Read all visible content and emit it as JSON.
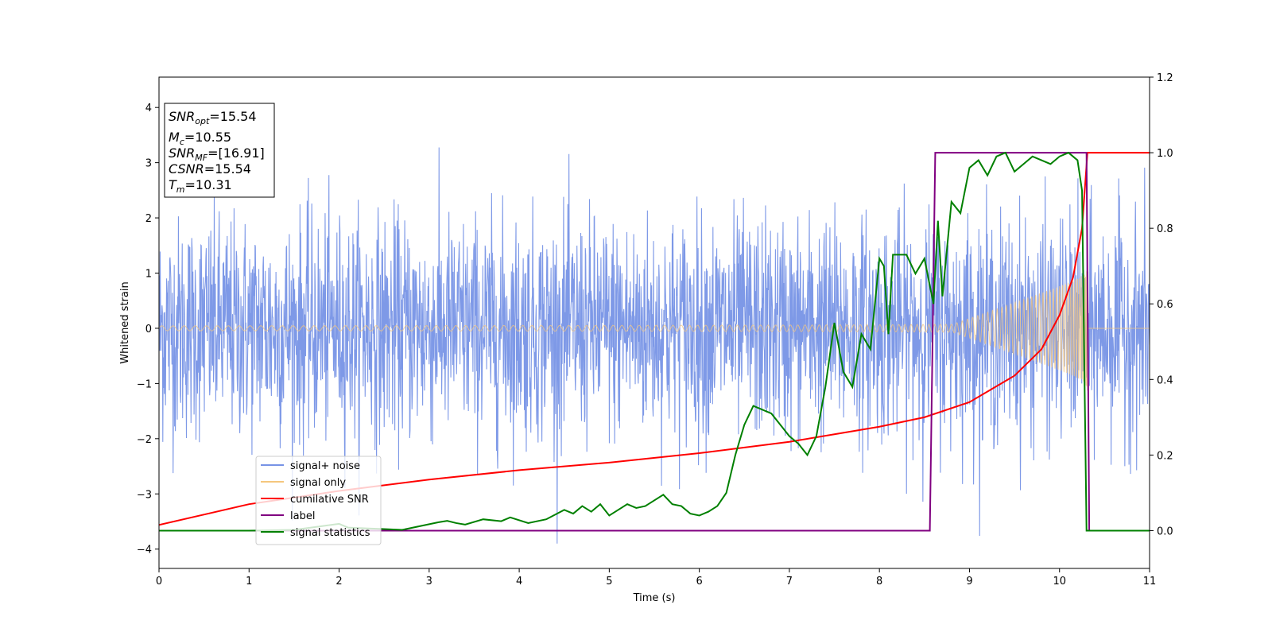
{
  "chart_data": {
    "type": "line",
    "xlabel": "Time (s)",
    "ylabel": "Whitened strain",
    "xlim": [
      0,
      11
    ],
    "ylim_left": [
      -4.35,
      4.55
    ],
    "ylim_right": [
      -0.1,
      1.2
    ],
    "x_ticks": [
      "0",
      "1",
      "2",
      "3",
      "4",
      "5",
      "6",
      "7",
      "8",
      "9",
      "10",
      "11"
    ],
    "y_ticks_left": [
      "−4",
      "−3",
      "−2",
      "−1",
      "0",
      "1",
      "2",
      "3",
      "4"
    ],
    "y_ticks_right": [
      "0.0",
      "0.2",
      "0.4",
      "0.6",
      "0.8",
      "1.0",
      "1.2"
    ],
    "grid": false,
    "legend_position": "lower-left",
    "info_box": {
      "snr_opt": "SNRopt=15.54",
      "mc": "Mc=10.55",
      "snr_mf": "SNRMF=[16.91]",
      "csnr": "CSNR=15.54",
      "tm": "Tm=10.31"
    },
    "series": [
      {
        "name": "signal+ noise",
        "axis": "left",
        "color": "#7793e6",
        "description_kind": "noise",
        "noise_std": 1.0,
        "x_range": [
          0,
          11
        ]
      },
      {
        "name": "signal only",
        "axis": "left",
        "color": "#f5c77e",
        "description_kind": "chirp",
        "amplitude_start": 0.05,
        "amplitude_end": 1.35,
        "merger_time": 10.31
      },
      {
        "name": "cumilative SNR",
        "axis": "right",
        "color": "#ff0000",
        "x": [
          0,
          1,
          2,
          3,
          4,
          5,
          6,
          7,
          7.5,
          8,
          8.5,
          9,
          9.5,
          9.8,
          10.0,
          10.15,
          10.25,
          10.31,
          11
        ],
        "y": [
          0.015,
          0.07,
          0.105,
          0.135,
          0.16,
          0.18,
          0.205,
          0.235,
          0.255,
          0.275,
          0.3,
          0.34,
          0.41,
          0.48,
          0.57,
          0.67,
          0.8,
          1.0,
          1.0
        ]
      },
      {
        "name": "label",
        "axis": "right",
        "color": "#800080",
        "x": [
          0,
          8.56,
          8.62,
          10.3,
          10.33,
          11
        ],
        "y": [
          0,
          0,
          1,
          1,
          0,
          0
        ]
      },
      {
        "name": "signal statistics",
        "axis": "right",
        "color": "#008000",
        "x": [
          0,
          1,
          1.5,
          2,
          2.1,
          2.3,
          2.5,
          2.7,
          2.9,
          3.1,
          3.2,
          3.3,
          3.4,
          3.6,
          3.8,
          3.9,
          4.1,
          4.3,
          4.5,
          4.6,
          4.7,
          4.8,
          4.9,
          5.0,
          5.1,
          5.2,
          5.3,
          5.4,
          5.5,
          5.6,
          5.7,
          5.8,
          5.9,
          6.0,
          6.1,
          6.2,
          6.3,
          6.4,
          6.5,
          6.6,
          6.7,
          6.8,
          6.9,
          7.0,
          7.1,
          7.2,
          7.3,
          7.4,
          7.5,
          7.6,
          7.7,
          7.8,
          7.9,
          8.0,
          8.05,
          8.1,
          8.15,
          8.2,
          8.3,
          8.4,
          8.5,
          8.6,
          8.65,
          8.7,
          8.8,
          8.9,
          9.0,
          9.1,
          9.2,
          9.3,
          9.4,
          9.5,
          9.6,
          9.7,
          9.8,
          9.9,
          10.0,
          10.1,
          10.2,
          10.25,
          10.3,
          10.32,
          11
        ],
        "y": [
          0.0,
          0.0,
          0.002,
          0.018,
          0.008,
          0.006,
          0.004,
          0.002,
          0.012,
          0.022,
          0.026,
          0.02,
          0.016,
          0.03,
          0.025,
          0.035,
          0.02,
          0.03,
          0.055,
          0.045,
          0.065,
          0.05,
          0.07,
          0.04,
          0.055,
          0.07,
          0.06,
          0.065,
          0.08,
          0.095,
          0.07,
          0.065,
          0.045,
          0.04,
          0.05,
          0.065,
          0.1,
          0.2,
          0.28,
          0.33,
          0.32,
          0.31,
          0.28,
          0.25,
          0.23,
          0.2,
          0.25,
          0.38,
          0.55,
          0.42,
          0.38,
          0.52,
          0.48,
          0.72,
          0.7,
          0.52,
          0.73,
          0.73,
          0.73,
          0.68,
          0.72,
          0.6,
          0.82,
          0.62,
          0.87,
          0.84,
          0.96,
          0.98,
          0.94,
          0.99,
          1.0,
          0.95,
          0.97,
          0.99,
          0.98,
          0.97,
          0.99,
          1.0,
          0.98,
          0.9,
          0.0,
          0.0,
          0.0
        ]
      }
    ]
  },
  "colors": {
    "noise": "#7793e6",
    "signal": "#f5c77e",
    "snr": "#ff0000",
    "label": "#800080",
    "stats": "#008000"
  }
}
